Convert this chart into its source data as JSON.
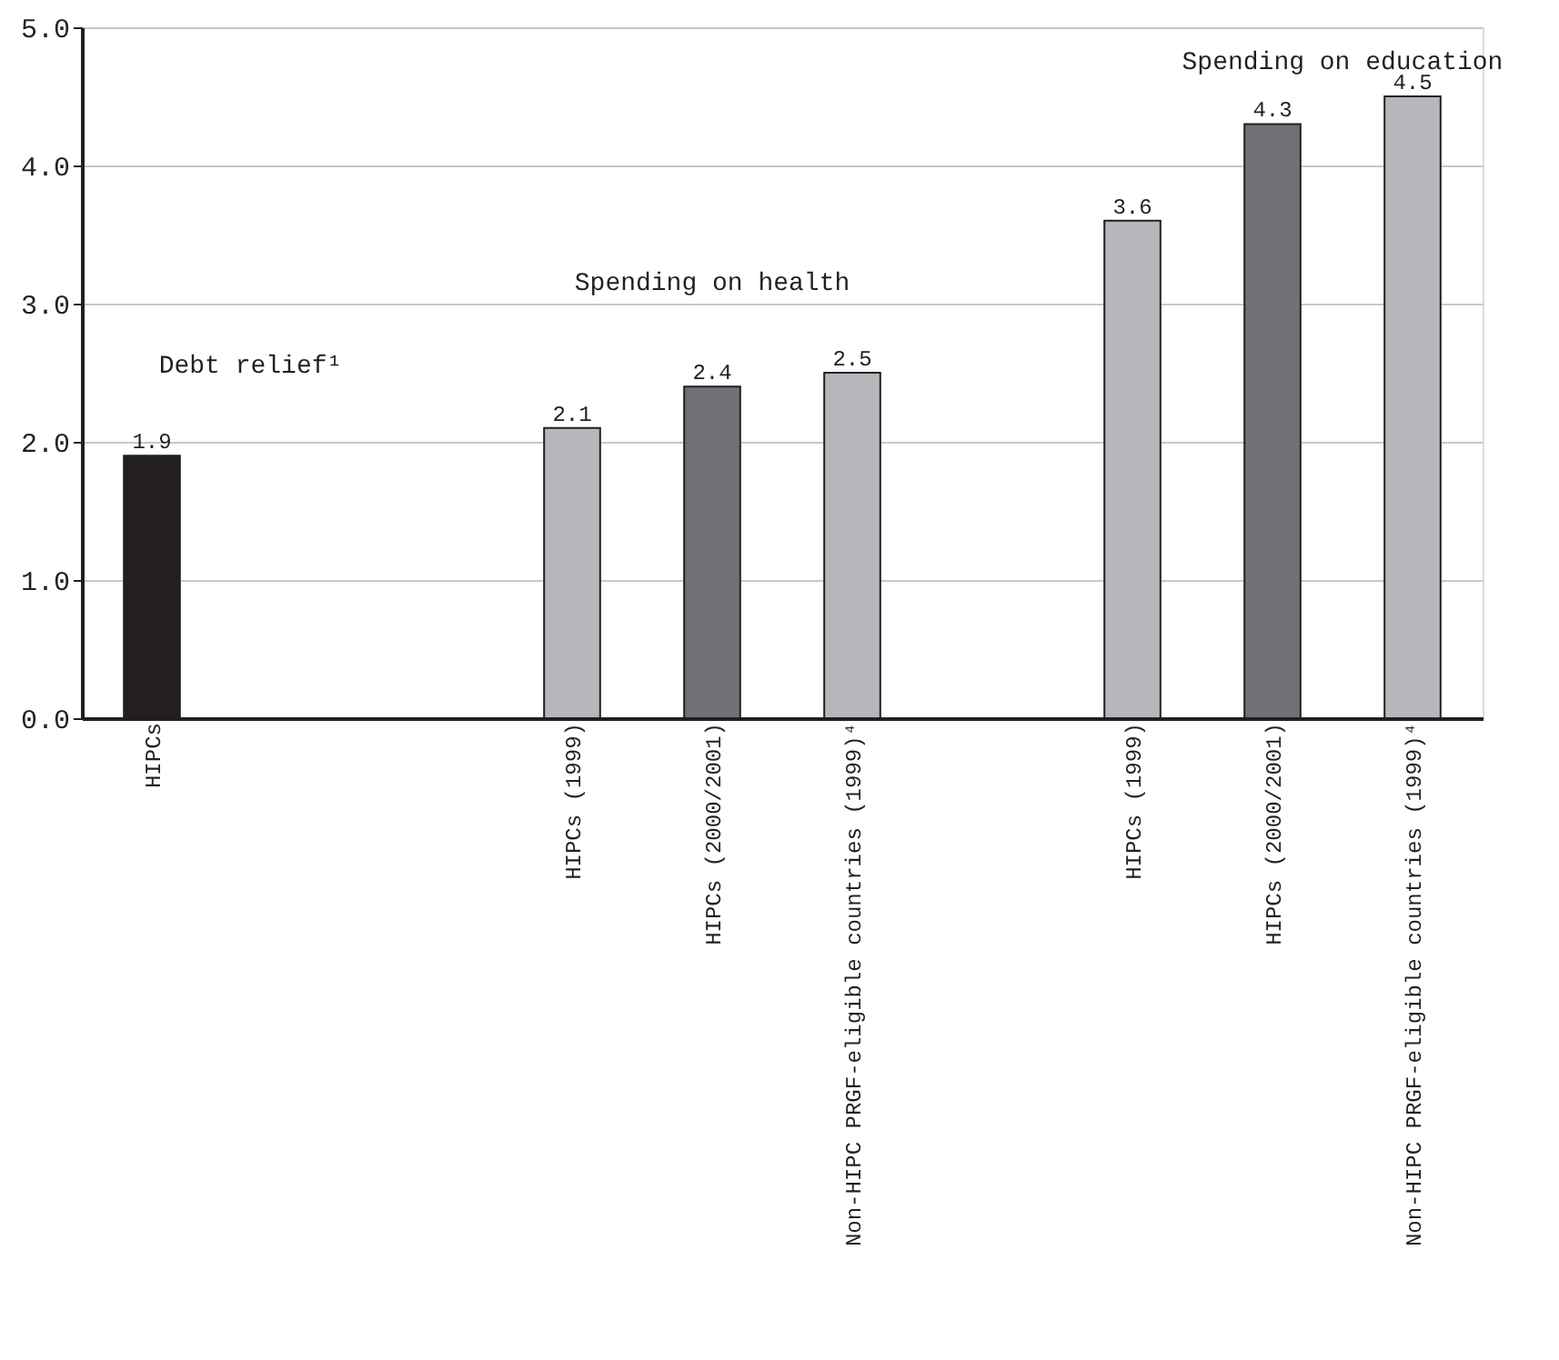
{
  "chart_data": {
    "type": "bar",
    "categories": [
      "HIPCs",
      null,
      null,
      "HIPCs (1999)",
      "HIPCs (2000/2001)",
      "Non-HIPC PRGF-eligible countries (1999)⁴",
      null,
      "HIPCs (1999)",
      "HIPCs (2000/2001)",
      "Non-HIPC PRGF-eligible countries (1999)⁴"
    ],
    "values": [
      1.9,
      null,
      null,
      2.1,
      2.4,
      2.5,
      null,
      3.6,
      4.3,
      4.5
    ],
    "colors": [
      "#231f20",
      null,
      null,
      "#b6b7bb",
      "#707075",
      "#b6b7bb",
      null,
      "#b6b7bb",
      "#707075",
      "#b6b7bb"
    ],
    "data_labels": true,
    "ylim": [
      0,
      5
    ],
    "yticks": [
      {
        "value": 0,
        "label": "0.0"
      },
      {
        "value": 1,
        "label": "1.0"
      },
      {
        "value": 2,
        "label": "2.0"
      },
      {
        "value": 3,
        "label": "3.0"
      },
      {
        "value": 4,
        "label": "4.0"
      },
      {
        "value": 5,
        "label": "5.0"
      }
    ],
    "grid": "y",
    "annotations": [
      "Debt relief¹",
      "Spending on health",
      "Spending on education"
    ]
  }
}
